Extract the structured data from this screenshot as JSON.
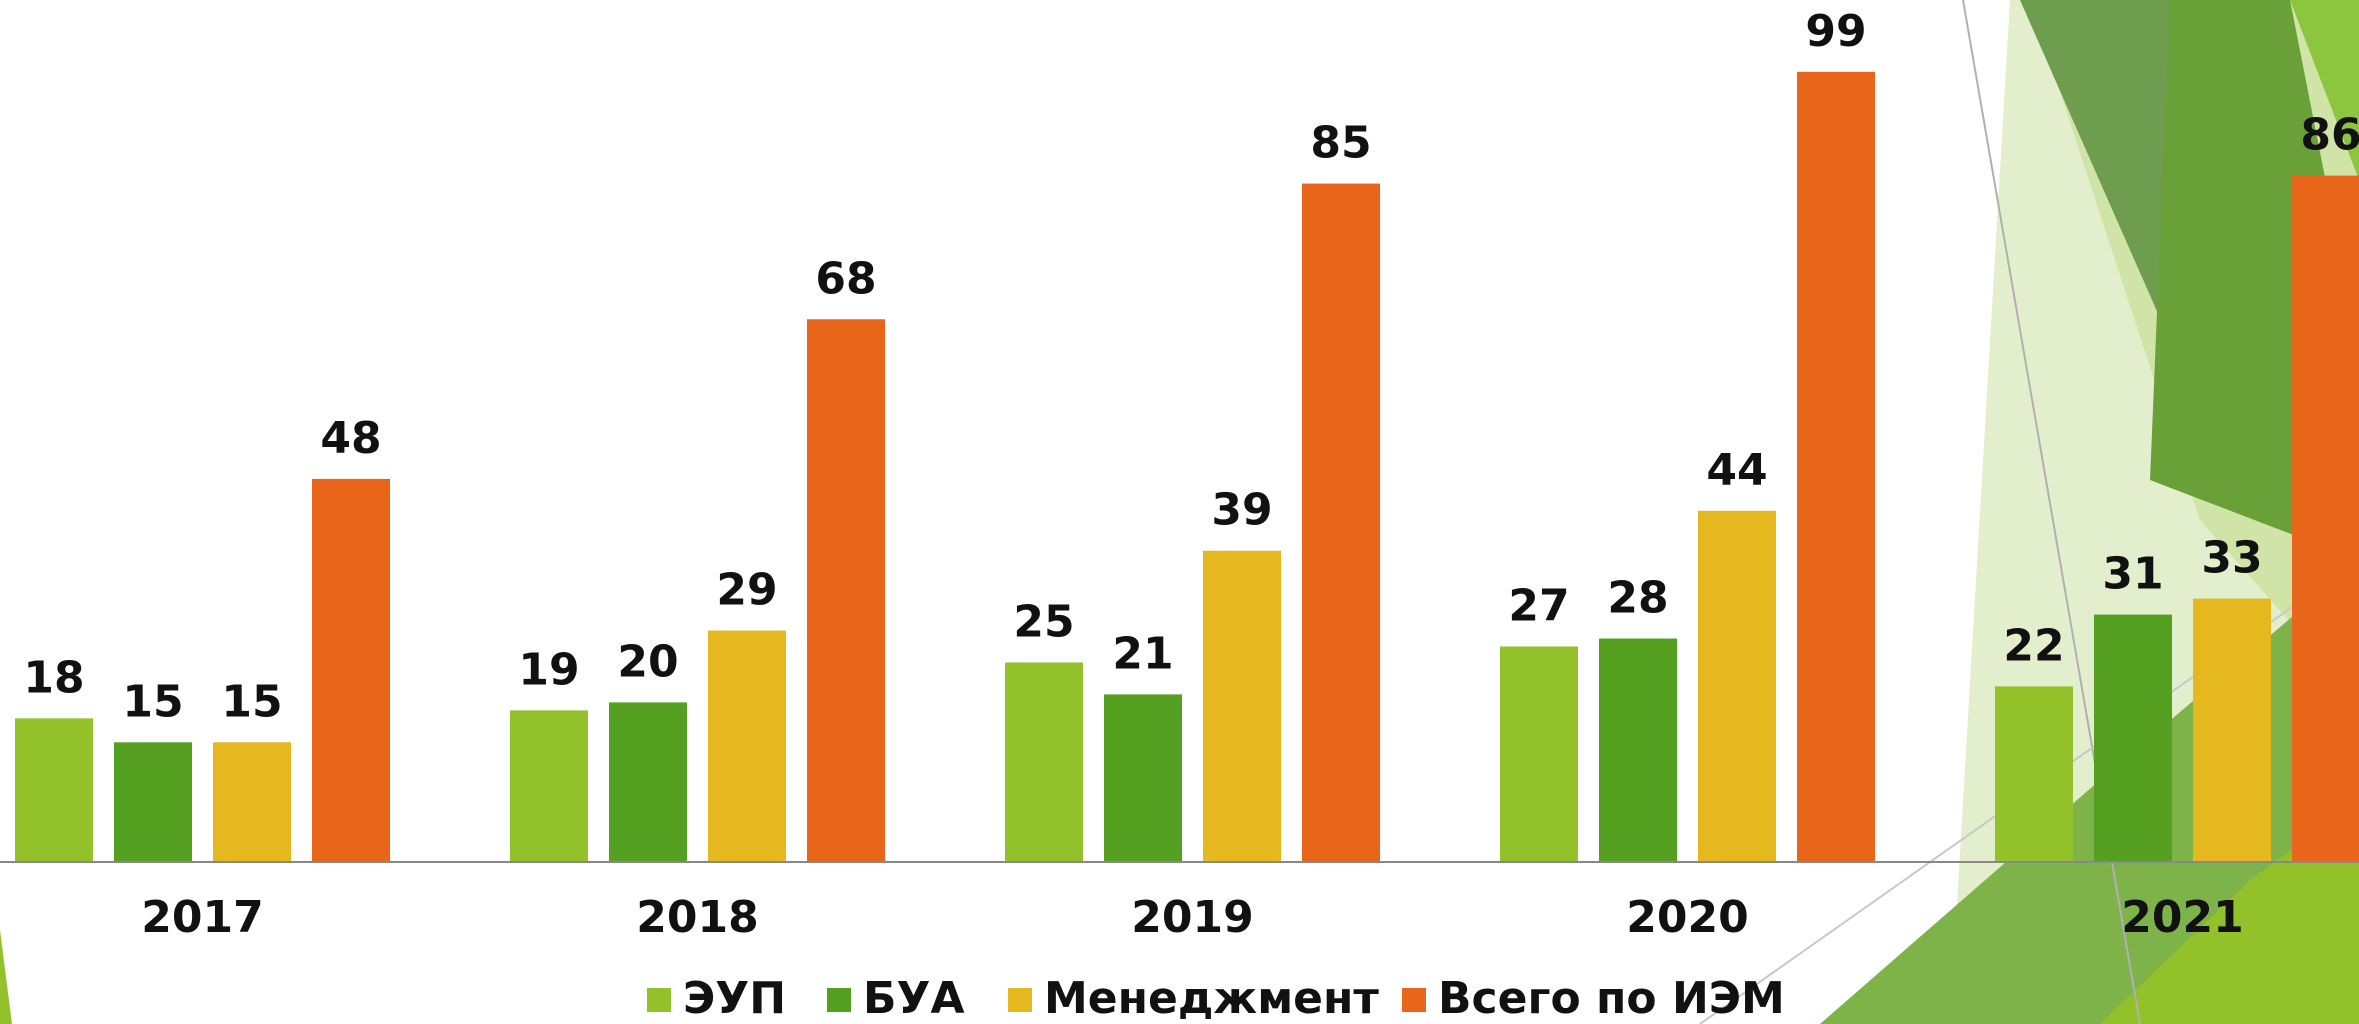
{
  "chart_data": {
    "type": "bar",
    "categories": [
      "2017",
      "2018",
      "2019",
      "2020",
      "2021"
    ],
    "series": [
      {
        "name": "ЭУП",
        "color": "#92c12a",
        "values": [
          18,
          19,
          25,
          27,
          22
        ]
      },
      {
        "name": "БУА",
        "color": "#55a021",
        "values": [
          15,
          20,
          21,
          28,
          31
        ]
      },
      {
        "name": "Менеджмент",
        "color": "#e6b820",
        "values": [
          15,
          29,
          39,
          44,
          33
        ]
      },
      {
        "name": "Всего по ИЭМ",
        "color": "#e8651a",
        "values": [
          48,
          68,
          85,
          99,
          86
        ]
      }
    ],
    "ylim": [
      0,
      108
    ],
    "legend": "bottom"
  }
}
